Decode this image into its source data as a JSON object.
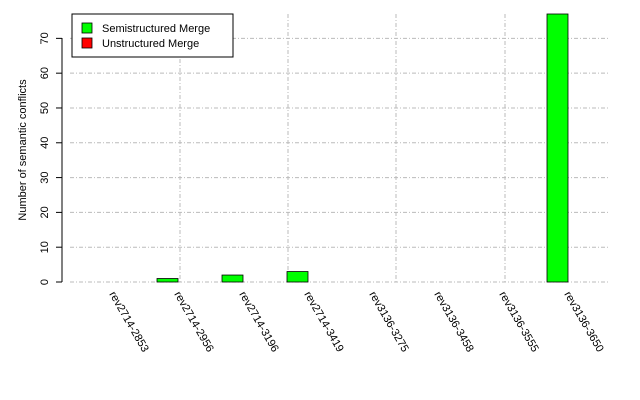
{
  "chart_data": {
    "type": "bar",
    "y_label": "Number of semantic conflicts",
    "categories": [
      "rev2714-2853",
      "rev2714-2956",
      "rev2714-3196",
      "rev2714-3419",
      "rev3136-3275",
      "rev3136-3458",
      "rev3136-3555",
      "rev3136-3650"
    ],
    "series": [
      {
        "name": "Semistructured Merge",
        "color": "#00ff00",
        "values": [
          0,
          1,
          2,
          3,
          0,
          0,
          0,
          77
        ]
      },
      {
        "name": "Unstructured Merge",
        "color": "#ff0000",
        "values": [
          0,
          0,
          0,
          0,
          0,
          0,
          0,
          0
        ]
      }
    ],
    "ylim": [
      0,
      77
    ],
    "yticks": [
      0,
      10,
      20,
      30,
      40,
      50,
      60,
      70
    ],
    "grid": true,
    "legend": "top-left"
  }
}
